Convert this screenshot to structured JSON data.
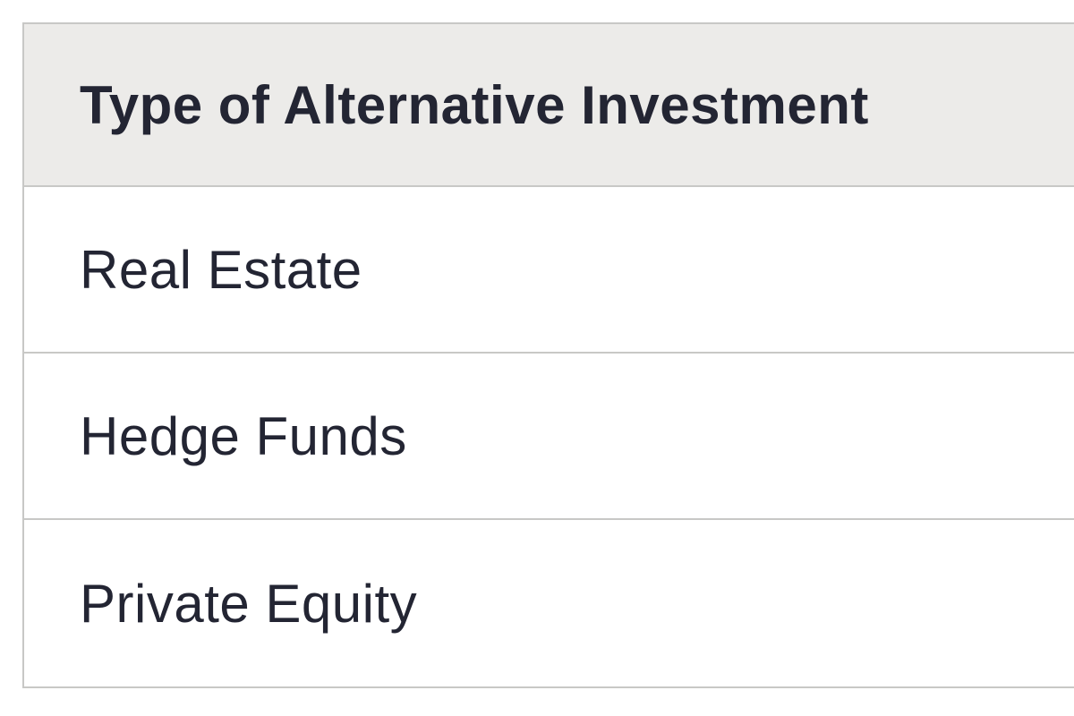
{
  "table": {
    "header": "Type of Alternative Investment",
    "rows": [
      {
        "label": "Real Estate"
      },
      {
        "label": "Hedge Funds"
      },
      {
        "label": "Private Equity"
      }
    ]
  },
  "colors": {
    "header_bg": "#ECEBE9",
    "row_bg": "#FFFFFF",
    "border": "#C8C8C6",
    "text": "#232533"
  }
}
